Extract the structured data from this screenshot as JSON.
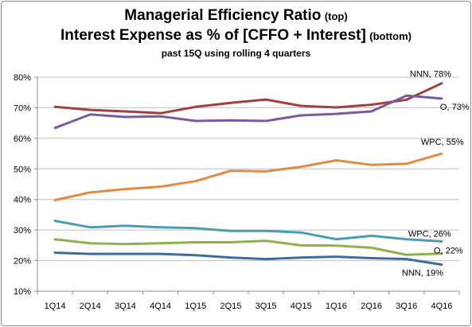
{
  "title": {
    "line1_main": "Managerial Efficiency Ratio",
    "line1_suffix": "(top)",
    "line2_main": "Interest Expense as % of [CFFO + Interest]",
    "line2_suffix": "(bottom)",
    "subtitle": "past 15Q using rolling 4 quarters"
  },
  "chart_data": {
    "type": "line",
    "categories": [
      "1Q14",
      "2Q14",
      "3Q14",
      "4Q14",
      "1Q15",
      "2Q15",
      "3Q15",
      "4Q15",
      "1Q16",
      "2Q16",
      "3Q16",
      "4Q16"
    ],
    "ylim": [
      10,
      80
    ],
    "yticks": [
      10,
      20,
      30,
      40,
      50,
      60,
      70,
      80
    ],
    "ytick_labels": [
      "10%",
      "20%",
      "30%",
      "40%",
      "50%",
      "60%",
      "70%",
      "80%"
    ],
    "grid": "horizontal",
    "legend": "none (end-of-line labels)",
    "series": [
      {
        "name": "NNN",
        "label": "NNN, 78%",
        "group": "top",
        "color": "#a0413f",
        "values": [
          70.3,
          69.3,
          68.8,
          68.2,
          70.3,
          71.6,
          72.7,
          70.6,
          70.1,
          71.0,
          72.6,
          78.0
        ]
      },
      {
        "name": "O",
        "label": "O, 73%",
        "group": "top",
        "color": "#7b5a9d",
        "values": [
          63.4,
          67.8,
          67.0,
          67.2,
          65.7,
          65.9,
          65.7,
          67.5,
          68.0,
          68.8,
          74.0,
          73.0
        ]
      },
      {
        "name": "WPC",
        "label": "WPC, 55%",
        "group": "top",
        "color": "#e08c43",
        "values": [
          39.8,
          42.3,
          43.4,
          44.2,
          46.0,
          49.4,
          49.2,
          50.7,
          52.8,
          51.3,
          51.7,
          55.0
        ]
      },
      {
        "name": "WPC",
        "label": "WPC, 26%",
        "group": "bottom",
        "color": "#4a9cb4",
        "values": [
          33.0,
          30.9,
          31.4,
          30.9,
          30.6,
          29.7,
          29.7,
          29.2,
          27.0,
          28.1,
          27.0,
          26.3
        ]
      },
      {
        "name": "O",
        "label": "O, 22%",
        "group": "bottom",
        "color": "#8fb04c",
        "values": [
          27.0,
          25.7,
          25.4,
          25.7,
          26.0,
          26.0,
          26.5,
          25.0,
          24.9,
          24.2,
          21.9,
          22.3
        ]
      },
      {
        "name": "NNN",
        "label": "NNN, 19%",
        "group": "bottom",
        "color": "#3f6d9b",
        "values": [
          22.6,
          22.2,
          22.2,
          22.2,
          21.8,
          21.0,
          20.5,
          21.0,
          21.3,
          20.8,
          20.5,
          18.7
        ]
      }
    ]
  },
  "colors": {
    "gridline": "#bfbfbf",
    "axis": "#8c8c8c",
    "border": "#8c8c8c"
  }
}
